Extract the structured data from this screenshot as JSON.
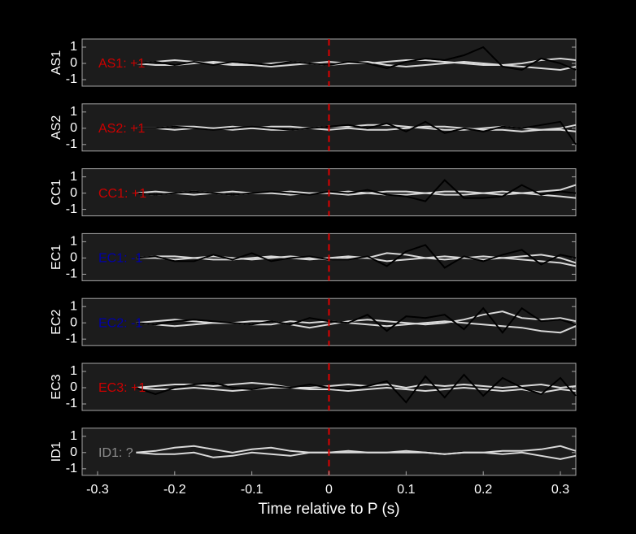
{
  "chart_data": [
    {
      "type": "line",
      "ylabel": "AS1",
      "annotation": "AS1: +1",
      "annotation_color": "#cc0000",
      "xlim": [
        -0.32,
        0.32
      ],
      "ylim": [
        -1.4,
        1.5
      ],
      "yticks": [
        -1,
        0,
        1
      ],
      "vline": 0,
      "vline_color": "#dd0000",
      "x": [
        -0.25,
        -0.225,
        -0.2,
        -0.175,
        -0.15,
        -0.125,
        -0.1,
        -0.075,
        -0.05,
        -0.025,
        0,
        0.025,
        0.05,
        0.075,
        0.1,
        0.125,
        0.15,
        0.175,
        0.2,
        0.225,
        0.25,
        0.275,
        0.3,
        0.32
      ],
      "series": [
        {
          "color": "#d9d9d9",
          "values": [
            0,
            0.1,
            0.2,
            0.1,
            0,
            -0.1,
            -0.1,
            0,
            0.1,
            0,
            -0.1,
            0,
            0,
            0.1,
            0.2,
            0.2,
            0.1,
            0,
            -0.1,
            -0.1,
            0,
            0.2,
            0.3,
            0.2
          ]
        },
        {
          "color": "#d9d9d9",
          "values": [
            0,
            -0.1,
            -0.1,
            0,
            0.1,
            0,
            -0.1,
            -0.2,
            -0.1,
            0,
            0.1,
            0,
            0.1,
            -0.1,
            -0.2,
            -0.1,
            0,
            0.1,
            0,
            -0.1,
            -0.2,
            -0.3,
            -0.4,
            -0.2
          ]
        },
        {
          "color": "#000000",
          "values": [
            0,
            0.1,
            -0.1,
            0.1,
            -0.1,
            0.1,
            0,
            -0.1,
            0.1,
            0,
            -0.1,
            0.1,
            0,
            -0.3,
            0.1,
            0.3,
            0.2,
            0.5,
            1,
            -0.2,
            -0.4,
            0.3,
            0,
            -0.4
          ]
        }
      ]
    },
    {
      "type": "line",
      "ylabel": "AS2",
      "annotation": "AS2: +1",
      "annotation_color": "#cc0000",
      "xlim": [
        -0.32,
        0.32
      ],
      "ylim": [
        -1.4,
        1.5
      ],
      "yticks": [
        -1,
        0,
        1
      ],
      "vline": 0,
      "vline_color": "#dd0000",
      "x": [
        -0.25,
        -0.225,
        -0.2,
        -0.175,
        -0.15,
        -0.125,
        -0.1,
        -0.075,
        -0.05,
        -0.025,
        0,
        0.025,
        0.05,
        0.075,
        0.1,
        0.125,
        0.15,
        0.175,
        0.2,
        0.225,
        0.25,
        0.275,
        0.3,
        0.32
      ],
      "series": [
        {
          "color": "#d9d9d9",
          "values": [
            0,
            0,
            0.1,
            0.1,
            0,
            -0.1,
            0,
            0.1,
            0.1,
            0,
            0.1,
            0.1,
            0.2,
            0.2,
            0.1,
            0,
            -0.1,
            -0.1,
            0,
            0.1,
            0,
            -0.1,
            0,
            0.2
          ]
        },
        {
          "color": "#d9d9d9",
          "values": [
            0,
            0,
            -0.1,
            0,
            0,
            0.1,
            0,
            -0.1,
            -0.1,
            0,
            -0.1,
            0,
            -0.1,
            -0.1,
            0,
            0.1,
            0.1,
            0,
            -0.1,
            -0.1,
            -0.2,
            -0.1,
            -0.1,
            -0.2
          ]
        },
        {
          "color": "#000000",
          "values": [
            0,
            0,
            0.1,
            0,
            -0.1,
            0,
            0.1,
            0,
            -0.1,
            0,
            0.1,
            0.2,
            0,
            0.3,
            -0.2,
            0.4,
            -0.3,
            0,
            -0.2,
            0.1,
            0,
            0.2,
            0.4,
            -1
          ]
        }
      ]
    },
    {
      "type": "line",
      "ylabel": "CC1",
      "annotation": "CC1: +1",
      "annotation_color": "#cc0000",
      "xlim": [
        -0.32,
        0.32
      ],
      "ylim": [
        -1.4,
        1.5
      ],
      "yticks": [
        -1,
        0,
        1
      ],
      "vline": 0,
      "vline_color": "#dd0000",
      "x": [
        -0.25,
        -0.225,
        -0.2,
        -0.175,
        -0.15,
        -0.125,
        -0.1,
        -0.075,
        -0.05,
        -0.025,
        0,
        0.025,
        0.05,
        0.075,
        0.1,
        0.125,
        0.15,
        0.175,
        0.2,
        0.225,
        0.25,
        0.275,
        0.3,
        0.32
      ],
      "series": [
        {
          "color": "#d9d9d9",
          "values": [
            0,
            0.1,
            0,
            -0.1,
            0,
            0.1,
            0,
            0,
            0.1,
            0,
            0,
            0.1,
            0,
            -0.1,
            -0.1,
            0,
            0.1,
            0.1,
            0,
            -0.1,
            0,
            0.1,
            0.2,
            0.5
          ]
        },
        {
          "color": "#d9d9d9",
          "values": [
            0,
            -0.1,
            0,
            0.1,
            0,
            -0.1,
            0,
            0,
            -0.1,
            0,
            0,
            -0.1,
            0,
            0.1,
            0.1,
            0,
            -0.1,
            -0.1,
            0,
            0.1,
            0,
            -0.1,
            -0.2,
            -0.3
          ]
        },
        {
          "color": "#000000",
          "values": [
            0,
            -0.1,
            0,
            0.1,
            0,
            -0.1,
            0,
            0.1,
            0,
            -0.1,
            0.1,
            0,
            0.2,
            -0.1,
            -0.2,
            -0.5,
            0.8,
            -0.3,
            -0.3,
            -0.2,
            0.5,
            -0.1,
            0.1,
            0
          ]
        }
      ]
    },
    {
      "type": "line",
      "ylabel": "EC1",
      "annotation": "EC1: -1",
      "annotation_color": "#0000aa",
      "xlim": [
        -0.32,
        0.32
      ],
      "ylim": [
        -1.4,
        1.5
      ],
      "yticks": [
        -1,
        0,
        1
      ],
      "vline": 0,
      "vline_color": "#dd0000",
      "x": [
        -0.25,
        -0.225,
        -0.2,
        -0.175,
        -0.15,
        -0.125,
        -0.1,
        -0.075,
        -0.05,
        -0.025,
        0,
        0.025,
        0.05,
        0.075,
        0.1,
        0.125,
        0.15,
        0.175,
        0.2,
        0.225,
        0.25,
        0.275,
        0.3,
        0.32
      ],
      "series": [
        {
          "color": "#d9d9d9",
          "values": [
            0,
            0.1,
            0.1,
            0,
            -0.1,
            -0.1,
            0,
            0.1,
            0,
            -0.1,
            0,
            0.1,
            0,
            0.3,
            0.2,
            0,
            -0.1,
            0,
            0.1,
            0,
            0.1,
            0.2,
            0,
            -0.3
          ]
        },
        {
          "color": "#d9d9d9",
          "values": [
            0,
            0,
            -0.1,
            0,
            0.1,
            0,
            -0.1,
            0,
            0.1,
            0,
            -0.1,
            0,
            0,
            -0.2,
            -0.1,
            0,
            0.1,
            0,
            -0.1,
            0,
            -0.1,
            -0.2,
            -0.3,
            -0.5
          ]
        },
        {
          "color": "#000000",
          "values": [
            0,
            0.1,
            -0.2,
            -0.2,
            0.2,
            -0.1,
            0.3,
            -0.2,
            0,
            0.1,
            -0.1,
            -0.1,
            0.1,
            -0.5,
            0.4,
            0.8,
            -0.6,
            0.1,
            -0.2,
            0.2,
            0.5,
            -0.4,
            0.2,
            0
          ]
        }
      ]
    },
    {
      "type": "line",
      "ylabel": "EC2",
      "annotation": "EC2: -1",
      "annotation_color": "#0000aa",
      "xlim": [
        -0.32,
        0.32
      ],
      "ylim": [
        -1.4,
        1.5
      ],
      "yticks": [
        -1,
        0,
        1
      ],
      "vline": 0,
      "vline_color": "#dd0000",
      "x": [
        -0.25,
        -0.225,
        -0.2,
        -0.175,
        -0.15,
        -0.125,
        -0.1,
        -0.075,
        -0.05,
        -0.025,
        0,
        0.025,
        0.05,
        0.075,
        0.1,
        0.125,
        0.15,
        0.175,
        0.2,
        0.225,
        0.25,
        0.275,
        0.3,
        0.32
      ],
      "series": [
        {
          "color": "#d9d9d9",
          "values": [
            0,
            0.1,
            0.2,
            0.1,
            0,
            0,
            0.1,
            0.1,
            -0.1,
            -0.3,
            -0.1,
            0.1,
            0.2,
            0.1,
            0,
            -0.1,
            0,
            0.2,
            0.5,
            0.7,
            0.3,
            0.2,
            0.3,
            0.1
          ]
        },
        {
          "color": "#d9d9d9",
          "values": [
            0,
            -0.1,
            -0.2,
            -0.1,
            0,
            0,
            -0.1,
            -0.1,
            0.1,
            0,
            0.1,
            0,
            -0.1,
            -0.2,
            -0.1,
            0,
            0.1,
            0,
            -0.1,
            -0.2,
            -0.3,
            -0.5,
            -0.6,
            -0.2
          ]
        },
        {
          "color": "#000000",
          "values": [
            0,
            -0.1,
            0.1,
            0.2,
            0.1,
            0,
            -0.1,
            0.1,
            -0.1,
            0.3,
            0.1,
            0,
            0.5,
            -0.5,
            0.4,
            0.3,
            0.5,
            -0.4,
            0.9,
            -0.6,
            0.9,
            0.1,
            0.2,
            -0.1
          ]
        }
      ]
    },
    {
      "type": "line",
      "ylabel": "EC3",
      "annotation": "EC3: +1",
      "annotation_color": "#cc0000",
      "xlim": [
        -0.32,
        0.32
      ],
      "ylim": [
        -1.4,
        1.5
      ],
      "yticks": [
        -1,
        0,
        1
      ],
      "vline": 0,
      "vline_color": "#dd0000",
      "x": [
        -0.25,
        -0.225,
        -0.2,
        -0.175,
        -0.15,
        -0.125,
        -0.1,
        -0.075,
        -0.05,
        -0.025,
        0,
        0.025,
        0.05,
        0.075,
        0.1,
        0.125,
        0.15,
        0.175,
        0.2,
        0.225,
        0.25,
        0.275,
        0.3,
        0.32
      ],
      "series": [
        {
          "color": "#d9d9d9",
          "values": [
            0,
            0.1,
            0.2,
            0.2,
            0.1,
            0.2,
            0.3,
            0.2,
            0,
            0,
            0.1,
            0.2,
            0.1,
            0.2,
            0,
            0.2,
            0.1,
            0.2,
            0.1,
            0,
            0.1,
            0.2,
            0,
            0.1
          ]
        },
        {
          "color": "#d9d9d9",
          "values": [
            0,
            -0.1,
            -0.1,
            0,
            -0.1,
            -0.2,
            -0.1,
            0,
            0,
            -0.1,
            -0.1,
            -0.2,
            -0.1,
            0,
            -0.1,
            -0.2,
            -0.1,
            0,
            -0.1,
            -0.2,
            -0.1,
            -0.3,
            -0.1,
            -0.2
          ]
        },
        {
          "color": "#000000",
          "values": [
            0,
            -0.4,
            0,
            0.2,
            0.3,
            0,
            -0.1,
            0.1,
            0,
            0.2,
            0,
            -0.1,
            0.1,
            0.4,
            -0.9,
            0.7,
            -0.6,
            0.8,
            -0.5,
            0.6,
            0,
            -0.4,
            0.6,
            -0.5
          ]
        }
      ]
    },
    {
      "type": "line",
      "ylabel": "ID1",
      "annotation": "ID1: ?",
      "annotation_color": "#8c8c8c",
      "xlim": [
        -0.32,
        0.32
      ],
      "ylim": [
        -1.4,
        1.5
      ],
      "yticks": [
        -1,
        0,
        1
      ],
      "vline": 0,
      "vline_color": "#dd0000",
      "xticks": [
        -0.3,
        -0.2,
        -0.1,
        0,
        0.1,
        0.2,
        0.3
      ],
      "xlabel": "Time relative to P (s)",
      "x": [
        -0.25,
        -0.225,
        -0.2,
        -0.175,
        -0.15,
        -0.125,
        -0.1,
        -0.075,
        -0.05,
        -0.025,
        0,
        0.025,
        0.05,
        0.075,
        0.1,
        0.125,
        0.15,
        0.175,
        0.2,
        0.225,
        0.25,
        0.275,
        0.3,
        0.32
      ],
      "series": [
        {
          "color": "#d9d9d9",
          "values": [
            0,
            0.1,
            0.3,
            0.4,
            0.2,
            0,
            0.2,
            0.3,
            0.1,
            0,
            0,
            0.1,
            0,
            0,
            0.1,
            0,
            -0.1,
            0,
            0,
            0.1,
            0.1,
            0.2,
            0.4,
            0.1
          ]
        },
        {
          "color": "#d9d9d9",
          "values": [
            0,
            -0.1,
            -0.1,
            0,
            -0.3,
            -0.2,
            0,
            -0.1,
            -0.2,
            0,
            0,
            0,
            0,
            0,
            0,
            0,
            -0.1,
            0,
            0,
            -0.1,
            0,
            -0.2,
            -0.4,
            -0.2
          ]
        }
      ]
    }
  ]
}
